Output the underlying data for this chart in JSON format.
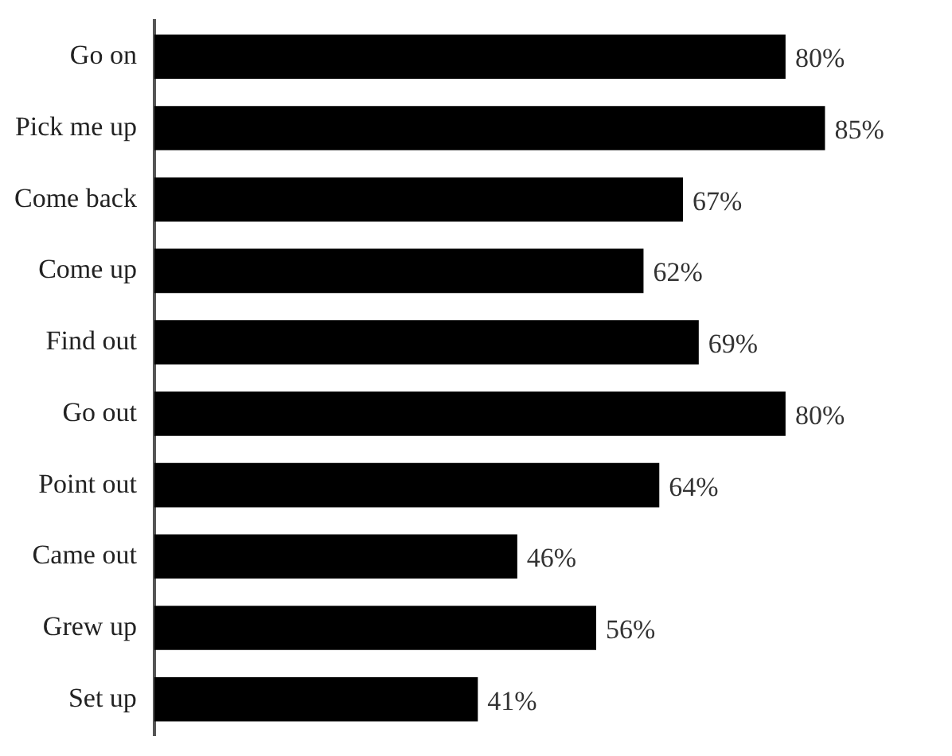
{
  "chart_data": {
    "type": "bar",
    "orientation": "horizontal",
    "tick_labels": "y",
    "categories": [
      "Go on",
      "Pick me up",
      "Come back",
      "Come up",
      "Find out",
      "Go out",
      "Point out",
      "Came out",
      "Grew up",
      "Set up"
    ],
    "values": [
      80,
      85,
      67,
      62,
      69,
      80,
      64,
      46,
      56,
      41
    ],
    "value_labels": [
      "80%",
      "85%",
      "67%",
      "62%",
      "69%",
      "80%",
      "64%",
      "46%",
      "56%",
      "41%"
    ],
    "color": "#000000"
  }
}
